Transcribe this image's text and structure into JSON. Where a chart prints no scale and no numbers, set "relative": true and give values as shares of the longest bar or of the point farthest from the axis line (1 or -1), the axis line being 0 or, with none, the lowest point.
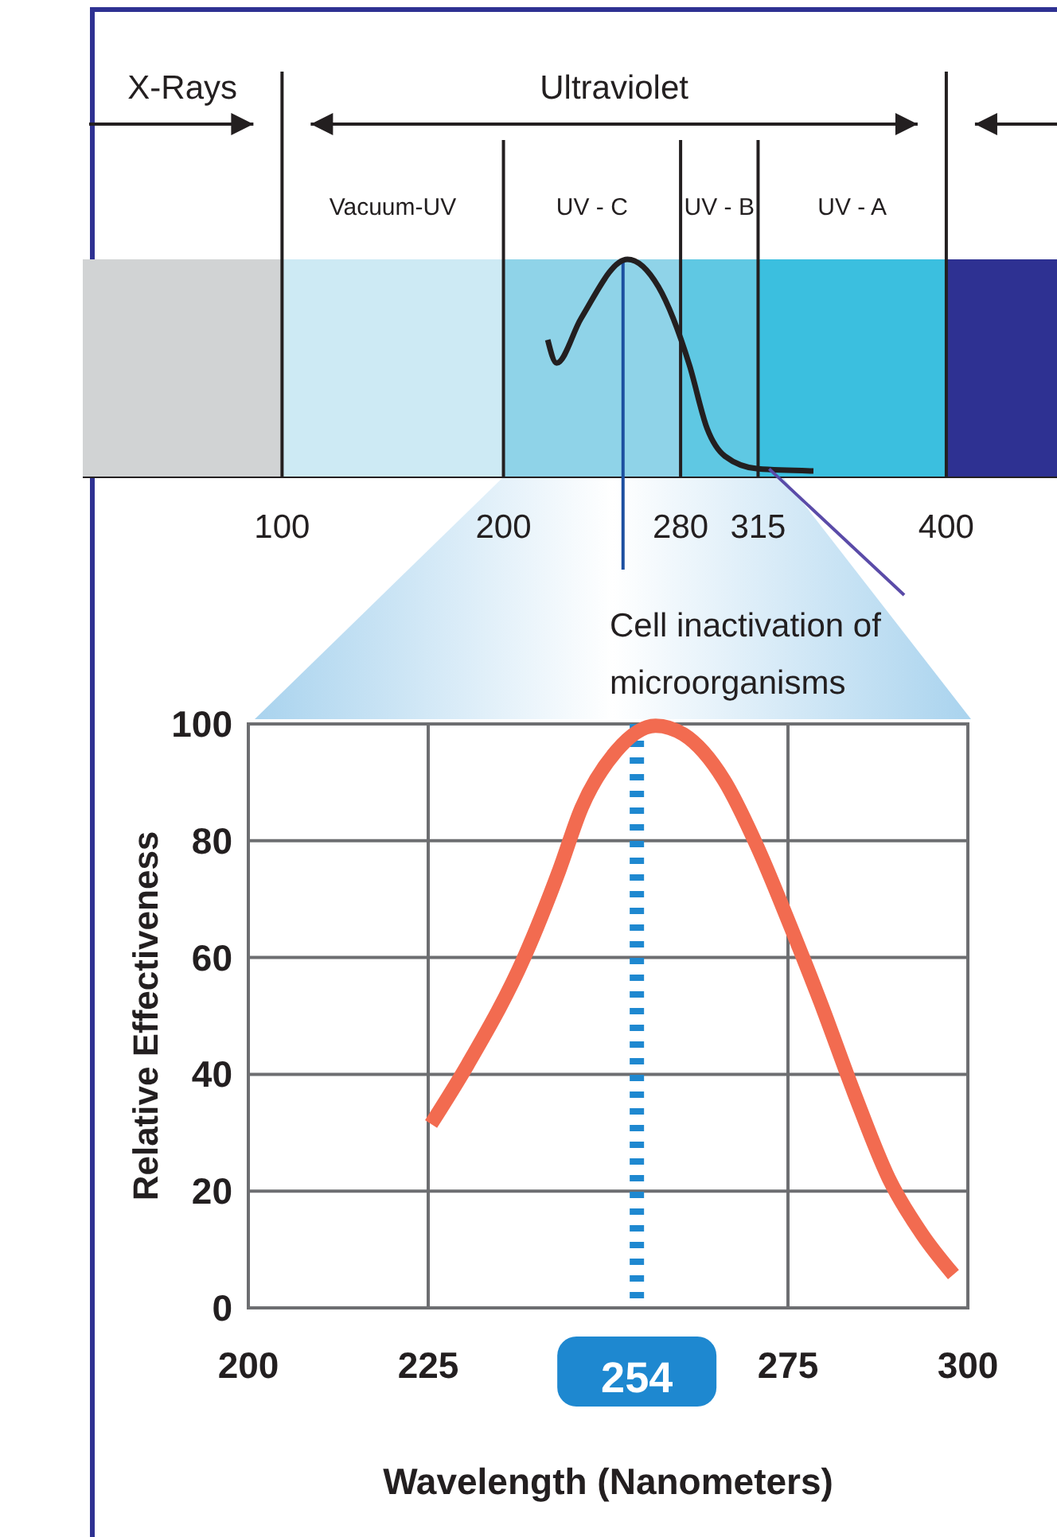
{
  "chart_data": [
    {
      "type": "line",
      "relative": true,
      "xlim": [
        10,
        450
      ],
      "xticks": [
        100,
        200,
        280,
        315,
        400
      ],
      "tick_labels": "x",
      "bands": [
        {
          "axis": "x",
          "from": 10,
          "to": 100,
          "label": null,
          "color": "#d1d3d4"
        },
        {
          "axis": "x",
          "from": 100,
          "to": 200,
          "label": "Vacuum-UV",
          "color": "#cdeaf4"
        },
        {
          "axis": "x",
          "from": 200,
          "to": 280,
          "label": "UV - C",
          "color": "#8fd3e8"
        },
        {
          "axis": "x",
          "from": 280,
          "to": 315,
          "label": "UV - B",
          "color": "#5fc8e3"
        },
        {
          "axis": "x",
          "from": 315,
          "to": 400,
          "label": "UV - A",
          "color": "#3bbfdf"
        },
        {
          "axis": "x",
          "from": 400,
          "to": 450,
          "label": null,
          "color": "#2e3192"
        }
      ],
      "ref_lines": [
        {
          "axis": "x",
          "value": 100
        },
        {
          "axis": "x",
          "value": 200
        },
        {
          "axis": "x",
          "value": 280
        },
        {
          "axis": "x",
          "value": 315
        },
        {
          "axis": "x",
          "value": 400
        },
        {
          "axis": "x",
          "value": 254,
          "color": "#1c4fa0"
        }
      ],
      "annotations": [
        "X-Rays",
        "Ultraviolet",
        {
          "text": "Cell inactivation of microorganisms",
          "x": 320,
          "y": 0.01
        }
      ],
      "series": [
        {
          "color": "#231f20",
          "x": [
            220,
            224,
            235,
            256,
            270,
            284,
            292,
            300,
            315,
            340
          ],
          "values": [
            0.62,
            0.51,
            0.72,
            1,
            0.87,
            0.5,
            0.2,
            0.07,
            0.01,
            0
          ]
        }
      ]
    },
    {
      "type": "line",
      "xlabel": "Wavelength (Nanometers)",
      "ylabel": "Relative Effectiveness",
      "xlim": [
        200,
        300
      ],
      "xticks": [
        200,
        225,
        275,
        300
      ],
      "ylim": [
        0,
        100
      ],
      "yticks": [
        0,
        20,
        40,
        60,
        80,
        100
      ],
      "grid": true,
      "ref_lines": [
        {
          "axis": "x",
          "value": 254,
          "label": "254",
          "color": "#1e88d0",
          "line_style": "dashed"
        }
      ],
      "series": [
        {
          "color": "#f26b50",
          "x": [
            225.4,
            230.5,
            238.4,
            243.2,
            246.3,
            251.1,
            256.6,
            260.5,
            266.1,
            270.8,
            275.1,
            279.5,
            284.2,
            289,
            293.7,
            298
          ],
          "values": [
            31.5,
            41.7,
            60.2,
            74.9,
            85.6,
            95.3,
            99.7,
            98.2,
            90.4,
            78.8,
            66.1,
            52.4,
            36.8,
            22.2,
            12.5,
            5.7
          ]
        }
      ]
    }
  ]
}
